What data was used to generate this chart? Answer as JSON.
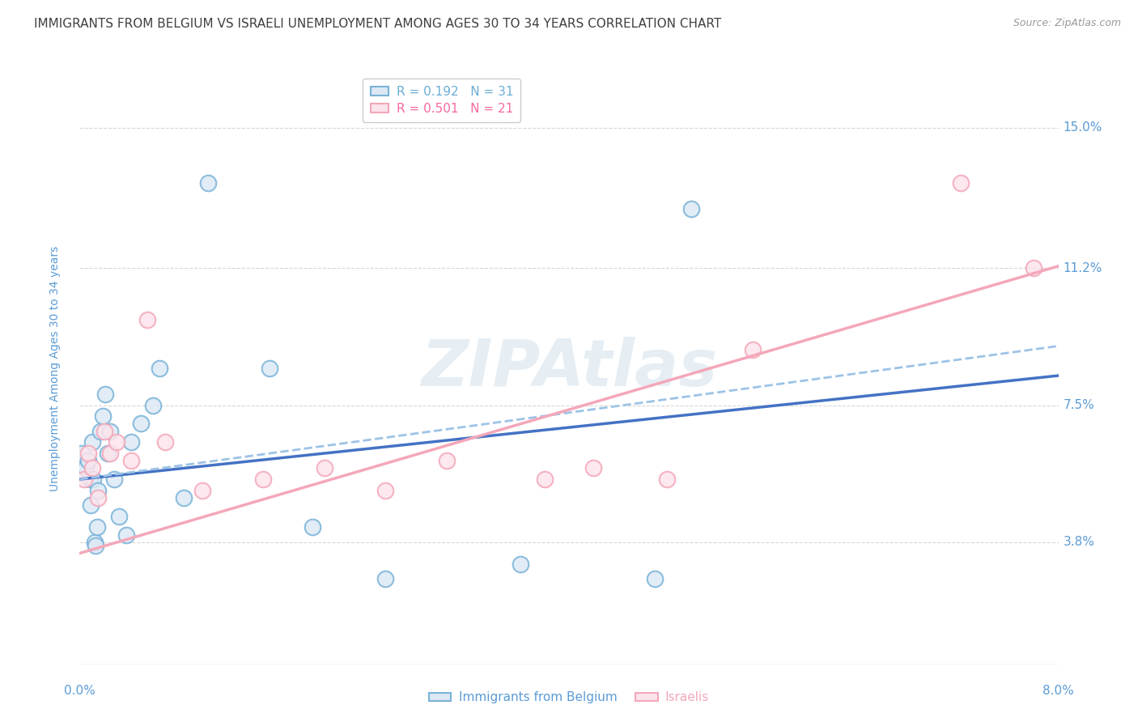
{
  "title": "IMMIGRANTS FROM BELGIUM VS ISRAELI UNEMPLOYMENT AMONG AGES 30 TO 34 YEARS CORRELATION CHART",
  "source": "Source: ZipAtlas.com",
  "ylabel": "Unemployment Among Ages 30 to 34 years",
  "ytick_labels": [
    "3.8%",
    "7.5%",
    "11.2%",
    "15.0%"
  ],
  "ytick_values": [
    3.8,
    7.5,
    11.2,
    15.0
  ],
  "xlim": [
    0.0,
    8.0
  ],
  "ylim": [
    0.5,
    16.5
  ],
  "watermark": "ZIPAtlas",
  "legend_entries": [
    {
      "label_r": "R = 0.192",
      "label_n": "N = 31",
      "color": "#6baed6"
    },
    {
      "label_r": "R = 0.501",
      "label_n": "N = 21",
      "color": "#f768a1"
    }
  ],
  "legend_bottom": [
    "Immigrants from Belgium",
    "Israelis"
  ],
  "blue_scatter_x": [
    0.02,
    0.05,
    0.07,
    0.08,
    0.09,
    0.1,
    0.11,
    0.12,
    0.13,
    0.14,
    0.15,
    0.17,
    0.19,
    0.21,
    0.23,
    0.25,
    0.28,
    0.32,
    0.38,
    0.42,
    0.5,
    0.6,
    0.65,
    0.85,
    1.05,
    1.55,
    1.9,
    2.5,
    3.6,
    4.7,
    5.0
  ],
  "blue_scatter_y": [
    6.2,
    5.8,
    6.0,
    5.5,
    4.8,
    6.5,
    5.5,
    3.8,
    3.7,
    4.2,
    5.2,
    6.8,
    7.2,
    7.8,
    6.2,
    6.8,
    5.5,
    4.5,
    4.0,
    6.5,
    7.0,
    7.5,
    8.5,
    5.0,
    13.5,
    8.5,
    4.2,
    2.8,
    3.2,
    2.8,
    12.8
  ],
  "pink_scatter_x": [
    0.04,
    0.07,
    0.1,
    0.15,
    0.2,
    0.25,
    0.3,
    0.42,
    0.55,
    0.7,
    1.0,
    1.5,
    2.0,
    2.5,
    3.0,
    3.8,
    4.2,
    4.8,
    5.5,
    7.2,
    7.8
  ],
  "pink_scatter_y": [
    5.5,
    6.2,
    5.8,
    5.0,
    6.8,
    6.2,
    6.5,
    6.0,
    9.8,
    6.5,
    5.2,
    5.5,
    5.8,
    5.2,
    6.0,
    5.5,
    5.8,
    5.5,
    9.0,
    13.5,
    11.2
  ],
  "blue_line_solid_color": "#4472c4",
  "blue_line_dashed_color": "#9dc3e6",
  "pink_line_color": "#f4a7b9",
  "scatter_blue_facecolor": "#dce9f5",
  "scatter_blue_edgecolor": "#7ab3d8",
  "scatter_pink_facecolor": "#fce4ec",
  "scatter_pink_edgecolor": "#f4a7b9",
  "background_color": "#ffffff",
  "grid_color": "#cccccc",
  "title_color": "#404040",
  "axis_label_color": "#5b9bd5",
  "tick_label_color": "#5b9bd5",
  "title_fontsize": 11,
  "axis_label_fontsize": 10,
  "tick_fontsize": 11,
  "blue_line_intercept": 5.5,
  "blue_line_slope": 0.35,
  "blue_dashed_line_intercept": 5.5,
  "blue_dashed_line_slope": 0.45,
  "pink_line_intercept": 3.5,
  "pink_line_slope": 0.97
}
